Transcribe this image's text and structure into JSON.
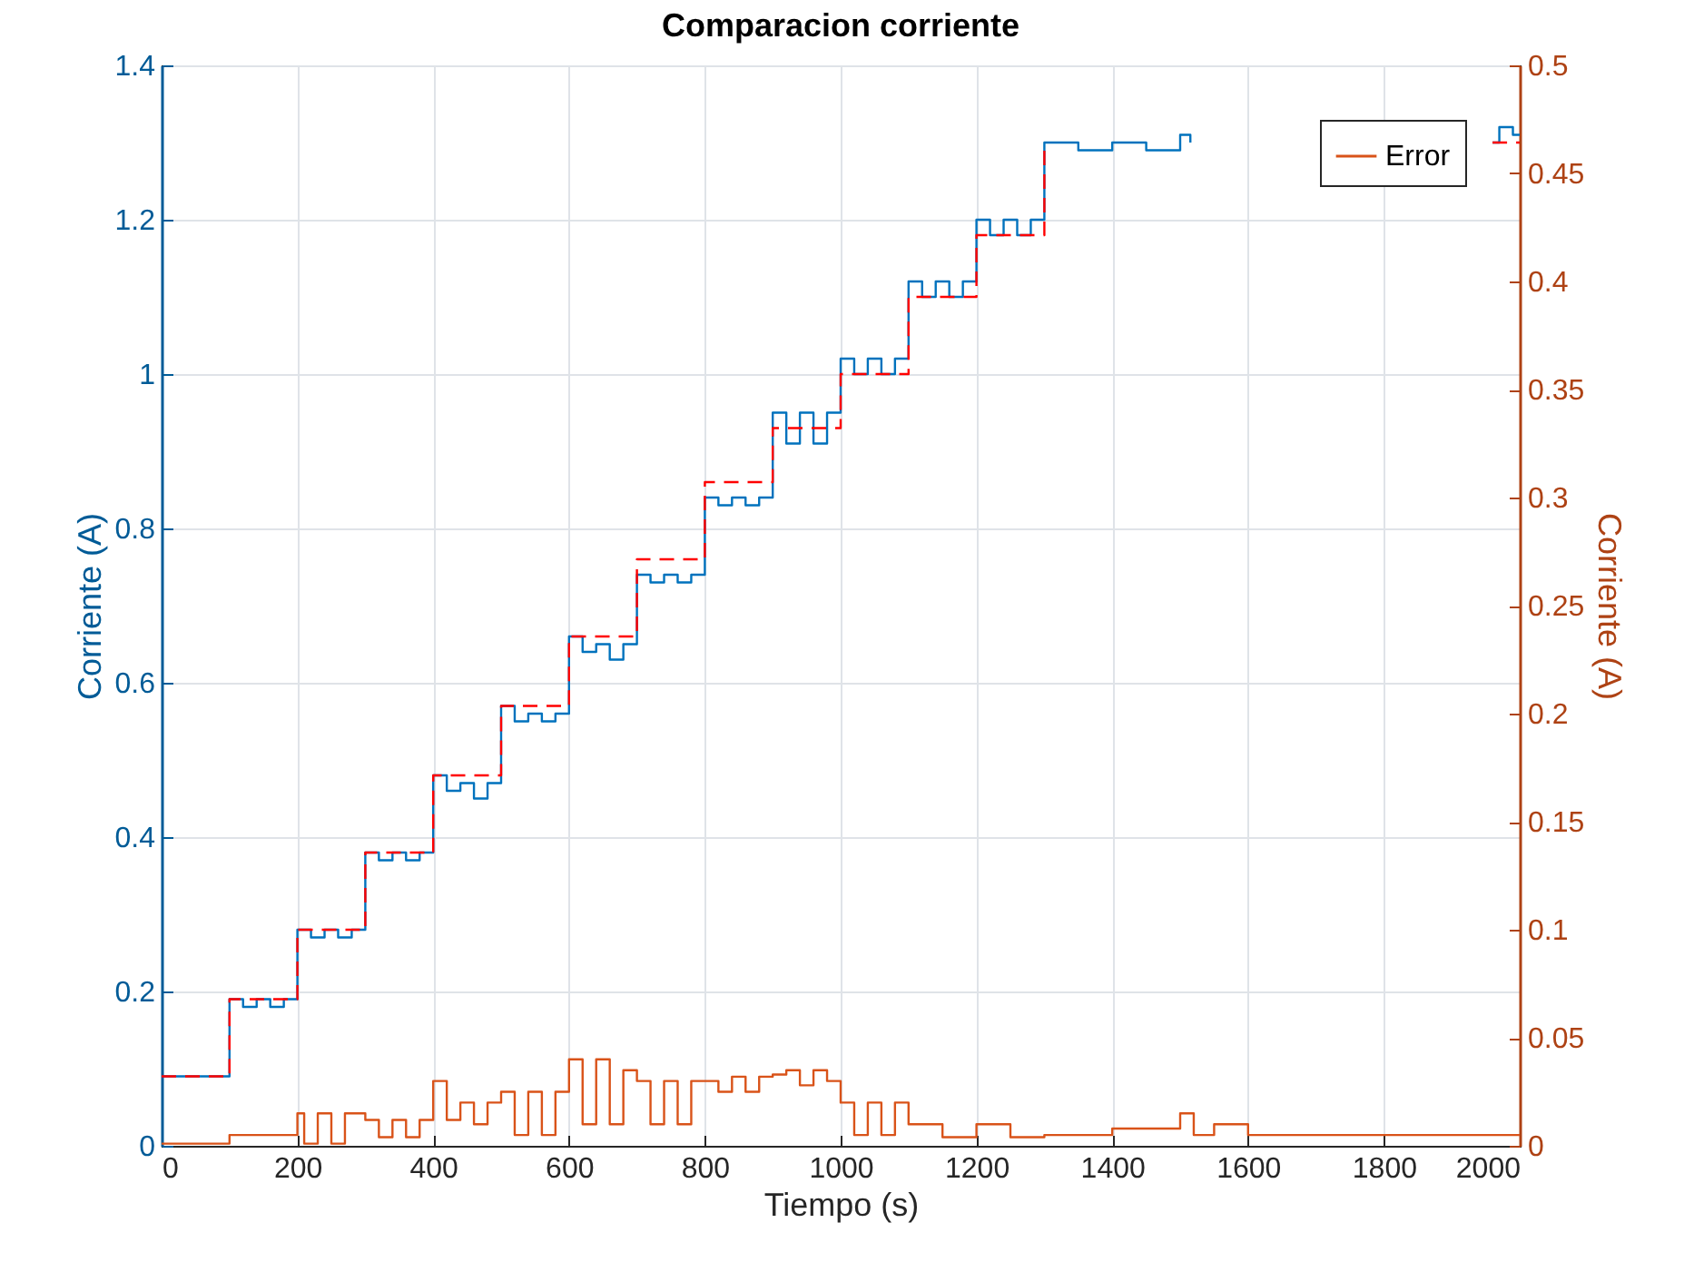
{
  "chart_data": {
    "type": "step",
    "title": "Comparacion corriente",
    "xlabel": "Tiempo (s)",
    "ylabel": "Corriente (A)",
    "y2label": "Corriente (A)",
    "xlim": [
      0,
      2000
    ],
    "xticks": [
      0,
      200,
      400,
      600,
      800,
      1000,
      1200,
      1400,
      1600,
      1800,
      2000
    ],
    "ylim": [
      0,
      1.4
    ],
    "yticks": [
      0,
      0.2,
      0.4,
      0.6,
      0.8,
      1,
      1.2,
      1.4
    ],
    "y2lim": [
      0,
      0.5
    ],
    "y2ticks": [
      0,
      0.05,
      0.1,
      0.15,
      0.2,
      0.25,
      0.3,
      0.35,
      0.4,
      0.45,
      0.5
    ],
    "grid": true,
    "legend": "top right",
    "marker": "none",
    "series": [
      {
        "color": "#0072bd",
        "line_style": "solid",
        "x": [
          0,
          100,
          120,
          140,
          160,
          180,
          200,
          220,
          240,
          260,
          280,
          300,
          320,
          340,
          360,
          380,
          400,
          420,
          440,
          460,
          480,
          500,
          520,
          540,
          560,
          580,
          600,
          620,
          640,
          660,
          680,
          700,
          720,
          740,
          760,
          780,
          800,
          820,
          840,
          860,
          880,
          900,
          920,
          940,
          960,
          980,
          1000,
          1020,
          1040,
          1060,
          1080,
          1100,
          1120,
          1140,
          1160,
          1180,
          1200,
          1220,
          1240,
          1260,
          1280,
          1300,
          1350,
          1400,
          1450,
          1500,
          1515,
          1530,
          1960,
          1970,
          1990,
          2000
        ],
        "values": [
          0.09,
          0.19,
          0.18,
          0.19,
          0.18,
          0.19,
          0.28,
          0.27,
          0.28,
          0.27,
          0.28,
          0.38,
          0.37,
          0.38,
          0.37,
          0.38,
          0.48,
          0.46,
          0.47,
          0.45,
          0.47,
          0.57,
          0.55,
          0.56,
          0.55,
          0.56,
          0.66,
          0.64,
          0.65,
          0.63,
          0.65,
          0.74,
          0.73,
          0.74,
          0.73,
          0.74,
          0.84,
          0.83,
          0.84,
          0.83,
          0.84,
          0.95,
          0.91,
          0.95,
          0.91,
          0.95,
          1.02,
          1.0,
          1.02,
          1.0,
          1.02,
          1.12,
          1.1,
          1.12,
          1.1,
          1.12,
          1.2,
          1.18,
          1.2,
          1.18,
          1.2,
          1.3,
          1.29,
          1.3,
          1.29,
          1.31,
          1.3,
          null,
          1.3,
          1.32,
          1.31,
          1.31
        ]
      },
      {
        "color": "#ff0000",
        "line_style": "dashed",
        "x": [
          0,
          100,
          200,
          300,
          400,
          500,
          600,
          700,
          800,
          900,
          1000,
          1100,
          1200,
          1300,
          1530,
          1960,
          2000
        ],
        "values": [
          0.09,
          0.19,
          0.28,
          0.38,
          0.48,
          0.57,
          0.66,
          0.76,
          0.86,
          0.93,
          1.0,
          1.1,
          1.18,
          1.3,
          null,
          1.3,
          1.3
        ]
      },
      {
        "name": "Error",
        "color": "#d95319",
        "line_style": "solid",
        "axis": "y2",
        "x": [
          0,
          100,
          200,
          210,
          230,
          250,
          270,
          300,
          320,
          340,
          360,
          380,
          400,
          420,
          440,
          460,
          480,
          500,
          520,
          540,
          560,
          580,
          600,
          620,
          640,
          660,
          680,
          700,
          720,
          740,
          760,
          780,
          800,
          820,
          840,
          860,
          880,
          900,
          920,
          940,
          960,
          980,
          1000,
          1020,
          1040,
          1060,
          1080,
          1100,
          1150,
          1200,
          1250,
          1300,
          1400,
          1500,
          1520,
          1550,
          1600,
          2000
        ],
        "values": [
          0.001,
          0.005,
          0.015,
          0.001,
          0.015,
          0.001,
          0.015,
          0.012,
          0.004,
          0.012,
          0.004,
          0.012,
          0.03,
          0.012,
          0.02,
          0.01,
          0.02,
          0.025,
          0.005,
          0.025,
          0.005,
          0.025,
          0.04,
          0.01,
          0.04,
          0.01,
          0.035,
          0.03,
          0.01,
          0.03,
          0.01,
          0.03,
          0.03,
          0.025,
          0.032,
          0.025,
          0.032,
          0.033,
          0.035,
          0.028,
          0.035,
          0.03,
          0.02,
          0.005,
          0.02,
          0.005,
          0.02,
          0.01,
          0.004,
          0.01,
          0.004,
          0.005,
          0.008,
          0.015,
          0.005,
          0.01,
          0.005,
          0.005
        ]
      }
    ]
  }
}
